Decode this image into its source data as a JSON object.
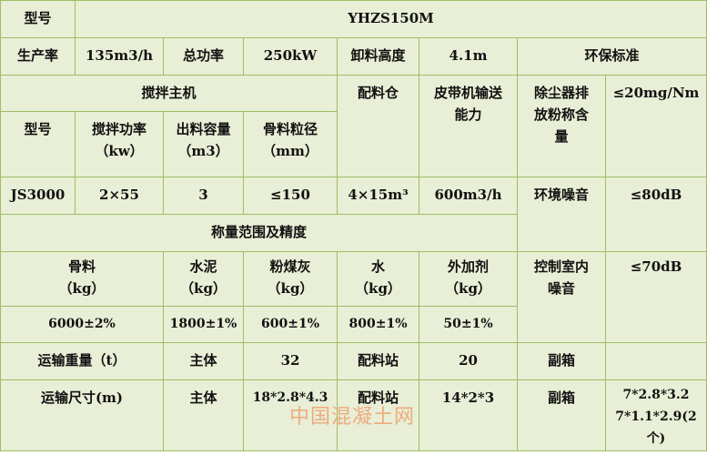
{
  "row1": {
    "model_label": "型号",
    "model_value": "YHZS150M"
  },
  "row2": {
    "production_label": "生产率",
    "production_value": "135m3/h",
    "power_label": "总功率",
    "power_value": "250kW",
    "discharge_label": "卸料高度",
    "discharge_value": "4.1m",
    "env_label": "环保标准"
  },
  "mixer": {
    "title": "搅拌主机",
    "model_label": "型号",
    "power_label": "搅拌功率",
    "power_unit": "（kw）",
    "capacity_label": "出料容量",
    "capacity_unit": "（m3）",
    "aggregate_label": "骨料粒径",
    "aggregate_unit": "（mm）",
    "model_value": "JS3000",
    "power_value": "2×55",
    "capacity_value": "3",
    "aggregate_value": "≤150"
  },
  "bin": {
    "label": "配料仓",
    "value": "4×15m³"
  },
  "belt": {
    "label1": "皮带机输送",
    "label2": "能力",
    "value": "600m3/h"
  },
  "dust": {
    "label1": "除尘器排",
    "label2": "放粉称含",
    "label3": "量",
    "value": "≤20mg/Nm"
  },
  "noise": {
    "env_label": "环境噪音",
    "env_value": "≤80dB",
    "room_label1": "控制室内",
    "room_label2": "噪音",
    "room_value": "≤70dB"
  },
  "weighing": {
    "title": "称量范围及精度",
    "items": [
      {
        "label": "骨料",
        "unit": "（kg）",
        "value": "6000±2%"
      },
      {
        "label": "水泥",
        "unit": "（kg）",
        "value": "1800±1%"
      },
      {
        "label": "粉煤灰",
        "unit": "（kg）",
        "value": "600±1%"
      },
      {
        "label": "水",
        "unit": "（kg）",
        "value": "800±1%"
      },
      {
        "label": "外加剂",
        "unit": "（kg）",
        "value": "50±1%"
      }
    ]
  },
  "transport_weight": {
    "label": "运输重量（t）",
    "main_label": "主体",
    "main_value": "32",
    "station_label": "配料站",
    "station_value": "20",
    "aux_label": "副箱",
    "aux_value": ""
  },
  "transport_size": {
    "label": "运输尺寸(m)",
    "main_label": "主体",
    "main_value": "18*2.8*4.3",
    "station_label": "配料站",
    "station_value": "14*2*3",
    "aux_label": "副箱",
    "aux_value1": "7*2.8*3.2",
    "aux_value2": "7*1.1*2.9(2个)"
  },
  "watermark": "中国混凝土网",
  "colors": {
    "cell_bg": "#e8efd6",
    "border": "#9fbd63",
    "watermark": "#f0a070"
  }
}
